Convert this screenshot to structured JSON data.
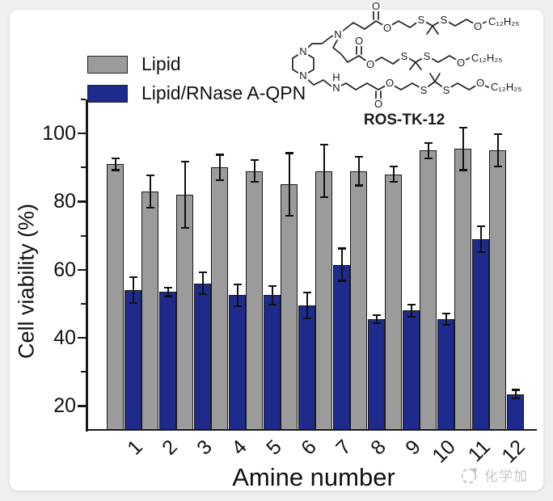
{
  "chart_data": {
    "type": "bar",
    "categories": [
      "1",
      "2",
      "3",
      "4",
      "5",
      "6",
      "7",
      "8",
      "9",
      "10",
      "11",
      "12"
    ],
    "series": [
      {
        "name": "Lipid",
        "color": "#9b9b9b",
        "values": [
          91,
          83,
          82,
          90,
          89,
          85,
          89,
          89,
          88,
          95,
          95.5,
          95
        ],
        "errors": [
          2,
          5,
          10,
          4,
          3.5,
          9.5,
          8,
          4.5,
          2.5,
          2.5,
          6.5,
          5
        ]
      },
      {
        "name": "Lipid/RNase A-QPN",
        "color": "#1e2a8c",
        "values": [
          54,
          53.5,
          56,
          52.5,
          52.5,
          49.5,
          61.5,
          45.5,
          48,
          45.5,
          69,
          23.5
        ],
        "errors": [
          4,
          1.5,
          3.5,
          3.5,
          3,
          4,
          5,
          1.5,
          2,
          2,
          4,
          1.5
        ]
      }
    ],
    "xlabel": "Amine number",
    "ylabel": "Cell viability (%)",
    "ylim": [
      13,
      110
    ],
    "yticks": [
      20,
      40,
      60,
      80,
      100
    ],
    "minor_yticks": [
      30,
      50,
      70,
      90,
      110
    ],
    "grid": false,
    "error_bars": true,
    "legend_position": "top-left"
  },
  "legend": {
    "items": [
      {
        "label": "Lipid",
        "color": "#9b9b9b"
      },
      {
        "label": "Lipid/RNase A-QPN",
        "color": "#1e2a8c"
      }
    ]
  },
  "structure": {
    "title": "ROS-TK-12",
    "n": "N",
    "h": "H",
    "o": "O",
    "s": "S",
    "alkyl": "C₁₂H₂₅"
  },
  "watermark": {
    "text": "化学加"
  },
  "colors": {
    "axis": "#1a1a1a",
    "bar_outline": "#1a1a1a",
    "error_bar": "#111111",
    "page_bg": "#eef0ef",
    "card_bg": "#ffffff",
    "watermark": "#c6c6c6"
  }
}
